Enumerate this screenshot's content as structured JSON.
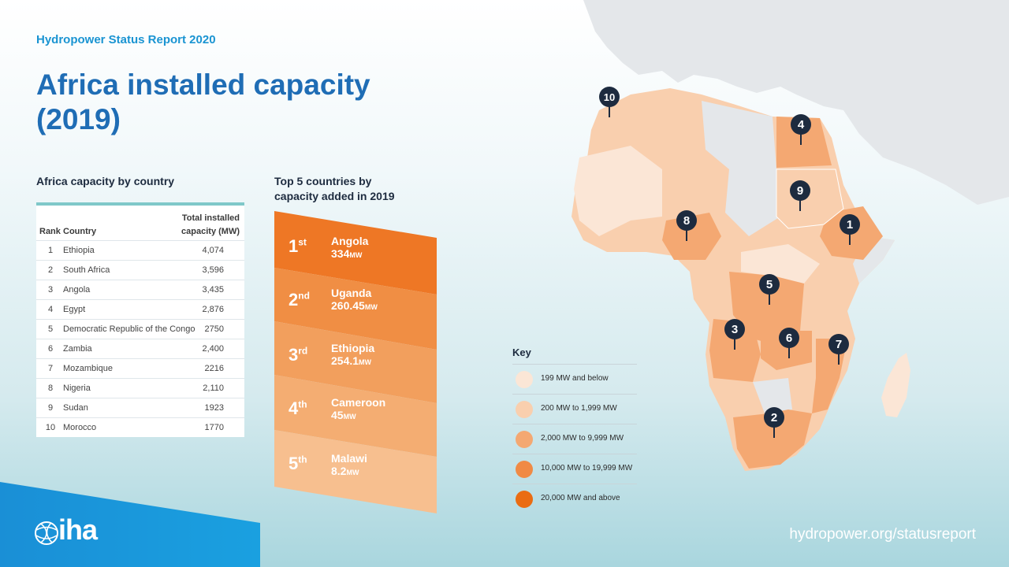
{
  "header": {
    "subtitle": "Hydropower Status Report 2020",
    "title": "Africa installed capacity (2019)"
  },
  "table_section": {
    "heading": "Africa capacity by country",
    "columns": {
      "rank": "Rank",
      "country": "Country",
      "capacity_line1": "Total installed",
      "capacity_line2": "capacity (MW)"
    },
    "rows": [
      {
        "rank": "1",
        "country": "Ethiopia",
        "capacity": "4,074"
      },
      {
        "rank": "2",
        "country": "South Africa",
        "capacity": "3,596"
      },
      {
        "rank": "3",
        "country": "Angola",
        "capacity": "3,435"
      },
      {
        "rank": "4",
        "country": "Egypt",
        "capacity": "2,876"
      },
      {
        "rank": "5",
        "country": "Democratic Republic of the Congo",
        "capacity": "2750"
      },
      {
        "rank": "6",
        "country": "Zambia",
        "capacity": "2,400"
      },
      {
        "rank": "7",
        "country": "Mozambique",
        "capacity": "2216"
      },
      {
        "rank": "8",
        "country": "Nigeria",
        "capacity": "2,110"
      },
      {
        "rank": "9",
        "country": "Sudan",
        "capacity": "1923"
      },
      {
        "rank": "10",
        "country": "Morocco",
        "capacity": "1770"
      }
    ]
  },
  "top5_section": {
    "heading_line1": "Top 5 countries by",
    "heading_line2": "capacity added in 2019",
    "items": [
      {
        "rank_num": "1",
        "rank_suffix": "st",
        "country": "Angola",
        "value": "334",
        "unit": "MW",
        "color": "#ee7725"
      },
      {
        "rank_num": "2",
        "rank_suffix": "nd",
        "country": "Uganda",
        "value": "260.45",
        "unit": "MW",
        "color": "#f08e44"
      },
      {
        "rank_num": "3",
        "rank_suffix": "rd",
        "country": "Ethiopia",
        "value": "254.1",
        "unit": "MW",
        "color": "#f29f5d"
      },
      {
        "rank_num": "4",
        "rank_suffix": "th",
        "country": "Cameroon",
        "value": "45",
        "unit": "MW",
        "color": "#f4ad72"
      },
      {
        "rank_num": "5",
        "rank_suffix": "th",
        "country": "Malawi",
        "value": "8.2",
        "unit": "MW",
        "color": "#f7bf8f"
      }
    ]
  },
  "key": {
    "title": "Key",
    "items": [
      {
        "label": "199 MW and below",
        "color": "#fbe6d6"
      },
      {
        "label": "200 MW to 1,999 MW",
        "color": "#f9cfae"
      },
      {
        "label": "2,000 MW to 9,999 MW",
        "color": "#f4a872"
      },
      {
        "label": "10,000 MW to 19,999 MW",
        "color": "#f08a45"
      },
      {
        "label": "20,000 MW and above",
        "color": "#ea6c12"
      }
    ]
  },
  "map": {
    "markers": [
      {
        "num": "1",
        "country": "Ethiopia"
      },
      {
        "num": "2",
        "country": "South Africa"
      },
      {
        "num": "3",
        "country": "Angola"
      },
      {
        "num": "4",
        "country": "Egypt"
      },
      {
        "num": "5",
        "country": "Democratic Republic of the Congo"
      },
      {
        "num": "6",
        "country": "Zambia"
      },
      {
        "num": "7",
        "country": "Mozambique"
      },
      {
        "num": "8",
        "country": "Nigeria"
      },
      {
        "num": "9",
        "country": "Sudan"
      },
      {
        "num": "10",
        "country": "Morocco"
      }
    ],
    "colors": {
      "other": "#e4e7ea",
      "land_light": "#fbe6d6",
      "land_mid": "#f9cfae",
      "land_dark": "#f4a872",
      "marker": "#1d2b3f"
    }
  },
  "footer": {
    "logo": "iha",
    "url": "hydropower.org/statusreport"
  }
}
